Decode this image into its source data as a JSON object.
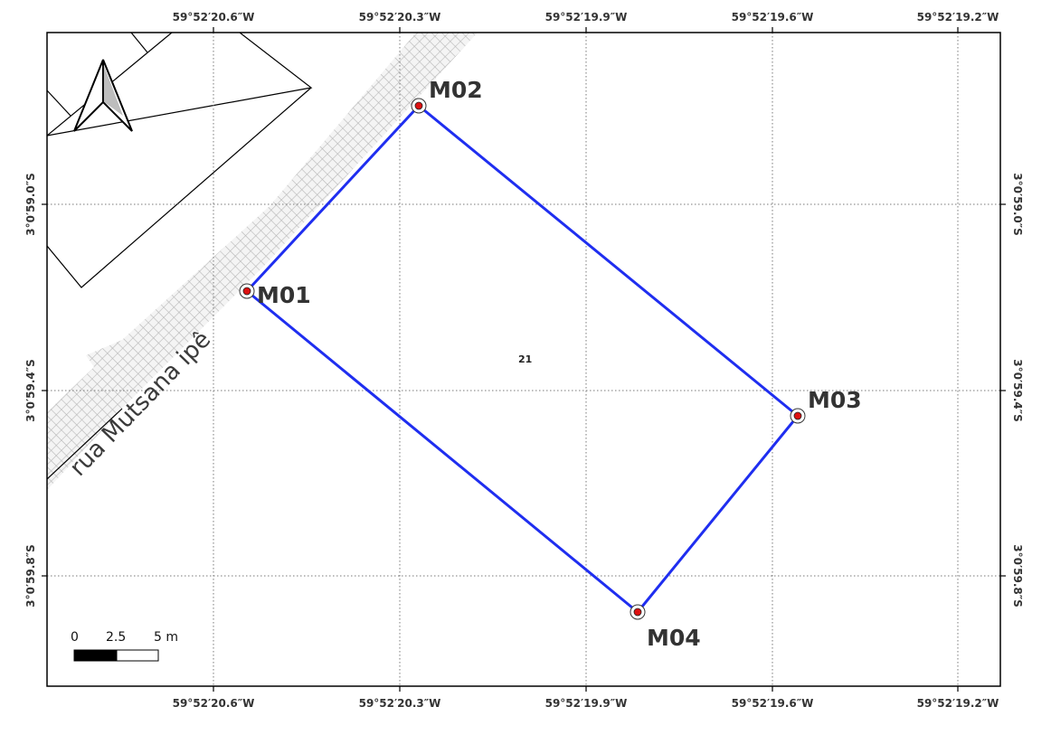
{
  "map": {
    "colors": {
      "boundary": "#1f2ef0",
      "marker_fill": "#dd1111",
      "street_hatch": "#b8b8b8",
      "grid": "#7a7a7a",
      "text": "#333333"
    },
    "longitude_labels": [
      "59°52′20.6″W",
      "59°52′20.3″W",
      "59°52′19.9″W",
      "59°52′19.6″W",
      "59°52′19.2″W"
    ],
    "latitude_labels": [
      "3°0′59.0″S",
      "3°0′59.4″S",
      "3°0′59.8″S"
    ],
    "street_name": "rua Mutsana ipê",
    "lot_number": "21",
    "markers": [
      "M01",
      "M02",
      "M03",
      "M04"
    ],
    "north_arrow_icon": "north-arrow-icon",
    "scale_bar": {
      "labels": [
        "0",
        "2.5",
        "5 m"
      ],
      "segments_m": [
        2.5,
        2.5
      ]
    }
  }
}
